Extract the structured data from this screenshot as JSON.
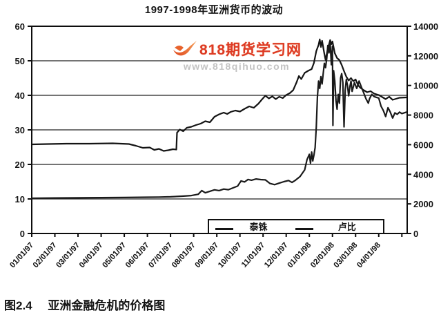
{
  "watermark": {
    "brand": "818期货学习网",
    "url": "www.818qihuo.com",
    "brand_color": "#dd3a24",
    "url_color": "#c3c3c3"
  },
  "caption": {
    "label": "图2.4",
    "text": "亚洲金融危机的价格图"
  },
  "chart_data": {
    "type": "line",
    "title": "1997-1998年亚洲货币的波动",
    "grid": "horizontal",
    "legend_position": "bottom-inside",
    "line_color": "#141414",
    "x_axis": {
      "tick_labels": [
        "01/01/97",
        "02/01/97",
        "03/01/97",
        "04/01/97",
        "05/01/97",
        "06/01/97",
        "07/01/97",
        "08/01/97",
        "09/01/97",
        "10/01/97",
        "11/01/97",
        "12/01/97",
        "01/01/98",
        "02/01/98",
        "03/01/98",
        "04/01/98"
      ],
      "unit": "month-index from 01/01/97",
      "range": [
        0,
        16.23
      ]
    },
    "y_axis_left": {
      "min": 0,
      "max": 60,
      "ticks": [
        0,
        10,
        20,
        30,
        40,
        50,
        60
      ]
    },
    "y_axis_right": {
      "min": 0,
      "max": 14000,
      "ticks": [
        0,
        2000,
        4000,
        6000,
        8000,
        10000,
        12000,
        14000
      ]
    },
    "series": [
      {
        "name": "泰铢",
        "axis": "left",
        "color": "#141414",
        "points": [
          [
            0,
            25.8
          ],
          [
            0.7,
            25.9
          ],
          [
            1.5,
            26.0
          ],
          [
            2.5,
            26.0
          ],
          [
            3.5,
            26.1
          ],
          [
            4.2,
            25.9
          ],
          [
            4.5,
            25.4
          ],
          [
            4.8,
            24.8
          ],
          [
            5.1,
            24.9
          ],
          [
            5.3,
            24.2
          ],
          [
            5.5,
            24.5
          ],
          [
            5.7,
            23.9
          ],
          [
            5.9,
            24.1
          ],
          [
            6.1,
            24.4
          ],
          [
            6.25,
            24.3
          ],
          [
            6.28,
            29.2
          ],
          [
            6.4,
            30.1
          ],
          [
            6.55,
            29.6
          ],
          [
            6.7,
            30.6
          ],
          [
            6.9,
            30.9
          ],
          [
            7.1,
            31.4
          ],
          [
            7.3,
            31.8
          ],
          [
            7.5,
            32.5
          ],
          [
            7.7,
            32.2
          ],
          [
            7.9,
            33.8
          ],
          [
            8.1,
            34.5
          ],
          [
            8.3,
            35.0
          ],
          [
            8.45,
            34.6
          ],
          [
            8.6,
            35.2
          ],
          [
            8.8,
            35.6
          ],
          [
            9.0,
            35.3
          ],
          [
            9.2,
            36.1
          ],
          [
            9.4,
            36.8
          ],
          [
            9.6,
            36.4
          ],
          [
            9.8,
            37.6
          ],
          [
            9.95,
            38.8
          ],
          [
            10.1,
            39.9
          ],
          [
            10.25,
            39.1
          ],
          [
            10.4,
            39.7
          ],
          [
            10.55,
            38.9
          ],
          [
            10.7,
            39.6
          ],
          [
            10.85,
            39.2
          ],
          [
            11.0,
            40.1
          ],
          [
            11.15,
            40.6
          ],
          [
            11.3,
            41.5
          ],
          [
            11.45,
            43.8
          ],
          [
            11.55,
            45.6
          ],
          [
            11.65,
            44.7
          ],
          [
            11.8,
            46.5
          ],
          [
            11.95,
            47.1
          ],
          [
            12.1,
            47.6
          ],
          [
            12.2,
            49.4
          ],
          [
            12.3,
            52.8
          ],
          [
            12.4,
            54.6
          ],
          [
            12.45,
            56.2
          ],
          [
            12.5,
            54.0
          ],
          [
            12.55,
            55.8
          ],
          [
            12.65,
            52.0
          ],
          [
            12.7,
            50.3
          ],
          [
            12.8,
            53.5
          ],
          [
            12.9,
            56.0
          ],
          [
            12.95,
            54.8
          ],
          [
            13.0,
            55.6
          ],
          [
            13.1,
            52.2
          ],
          [
            13.2,
            50.8
          ],
          [
            13.3,
            50.2
          ],
          [
            13.4,
            48.8
          ],
          [
            13.5,
            47.0
          ],
          [
            13.6,
            45.4
          ],
          [
            13.7,
            44.3
          ],
          [
            13.8,
            45.0
          ],
          [
            13.9,
            44.1
          ],
          [
            14.0,
            44.6
          ],
          [
            14.1,
            43.0
          ],
          [
            14.2,
            42.2
          ],
          [
            14.35,
            41.5
          ],
          [
            14.5,
            40.9
          ],
          [
            14.65,
            41.2
          ],
          [
            14.8,
            40.5
          ],
          [
            15.0,
            40.1
          ],
          [
            15.15,
            39.5
          ],
          [
            15.3,
            38.9
          ],
          [
            15.45,
            39.6
          ],
          [
            15.6,
            38.7
          ],
          [
            15.75,
            39.0
          ],
          [
            15.9,
            39.3
          ],
          [
            16.2,
            39.4
          ]
        ]
      },
      {
        "name": "卢比",
        "axis": "right",
        "color": "#1a1a1a",
        "points": [
          [
            0,
            2380
          ],
          [
            1,
            2400
          ],
          [
            2,
            2410
          ],
          [
            3,
            2420
          ],
          [
            4,
            2430
          ],
          [
            5,
            2450
          ],
          [
            5.5,
            2460
          ],
          [
            6,
            2480
          ],
          [
            6.5,
            2520
          ],
          [
            6.9,
            2560
          ],
          [
            7.2,
            2650
          ],
          [
            7.35,
            2900
          ],
          [
            7.5,
            2750
          ],
          [
            7.7,
            2850
          ],
          [
            7.9,
            2950
          ],
          [
            8.1,
            2900
          ],
          [
            8.3,
            3000
          ],
          [
            8.5,
            2960
          ],
          [
            8.7,
            3080
          ],
          [
            8.9,
            3200
          ],
          [
            9.05,
            3550
          ],
          [
            9.2,
            3480
          ],
          [
            9.35,
            3650
          ],
          [
            9.5,
            3600
          ],
          [
            9.7,
            3680
          ],
          [
            9.9,
            3640
          ],
          [
            10.1,
            3620
          ],
          [
            10.3,
            3380
          ],
          [
            10.5,
            3300
          ],
          [
            10.7,
            3400
          ],
          [
            10.9,
            3500
          ],
          [
            11.1,
            3580
          ],
          [
            11.25,
            3450
          ],
          [
            11.4,
            3600
          ],
          [
            11.6,
            3850
          ],
          [
            11.8,
            4300
          ],
          [
            11.9,
            5000
          ],
          [
            12.0,
            5350
          ],
          [
            12.05,
            4750
          ],
          [
            12.1,
            5500
          ],
          [
            12.15,
            4900
          ],
          [
            12.2,
            5300
          ],
          [
            12.25,
            5800
          ],
          [
            12.3,
            7200
          ],
          [
            12.35,
            9200
          ],
          [
            12.4,
            10300
          ],
          [
            12.45,
            9800
          ],
          [
            12.5,
            10600
          ],
          [
            12.55,
            10100
          ],
          [
            12.6,
            10800
          ],
          [
            12.65,
            11500
          ],
          [
            12.7,
            11200
          ],
          [
            12.75,
            11800
          ],
          [
            12.8,
            12700
          ],
          [
            12.85,
            12200
          ],
          [
            12.9,
            12900
          ],
          [
            12.95,
            11400
          ],
          [
            13.0,
            12650
          ],
          [
            13.02,
            7300
          ],
          [
            13.05,
            11000
          ],
          [
            13.1,
            10300
          ],
          [
            13.15,
            9000
          ],
          [
            13.2,
            8400
          ],
          [
            13.25,
            9400
          ],
          [
            13.3,
            8800
          ],
          [
            13.35,
            10500
          ],
          [
            13.4,
            10800
          ],
          [
            13.45,
            10200
          ],
          [
            13.5,
            7200
          ],
          [
            13.55,
            9700
          ],
          [
            13.6,
            10400
          ],
          [
            13.65,
            10000
          ],
          [
            13.7,
            9300
          ],
          [
            13.75,
            9900
          ],
          [
            13.8,
            10300
          ],
          [
            13.85,
            9600
          ],
          [
            13.95,
            10200
          ],
          [
            14.05,
            9800
          ],
          [
            14.15,
            10300
          ],
          [
            14.25,
            9900
          ],
          [
            14.35,
            9500
          ],
          [
            14.45,
            9100
          ],
          [
            14.55,
            8800
          ],
          [
            14.6,
            9100
          ],
          [
            14.7,
            9400
          ],
          [
            14.8,
            9250
          ],
          [
            14.9,
            9200
          ],
          [
            15.0,
            9150
          ],
          [
            15.1,
            8600
          ],
          [
            15.2,
            8300
          ],
          [
            15.3,
            7900
          ],
          [
            15.4,
            8500
          ],
          [
            15.5,
            8200
          ],
          [
            15.6,
            7800
          ],
          [
            15.7,
            8150
          ],
          [
            15.8,
            8050
          ],
          [
            15.9,
            8200
          ],
          [
            16.0,
            8100
          ],
          [
            16.2,
            8200
          ]
        ]
      }
    ]
  }
}
